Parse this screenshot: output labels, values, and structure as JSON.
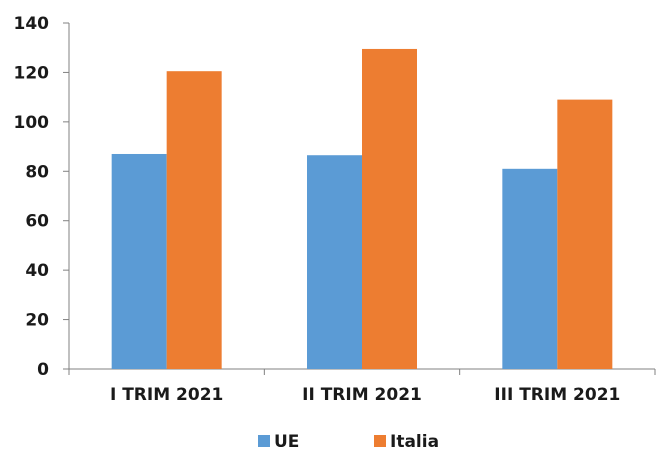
{
  "chart_data": {
    "type": "bar",
    "categories": [
      "I TRIM 2021",
      "II TRIM 2021",
      "III TRIM 2021"
    ],
    "series": [
      {
        "name": "UE",
        "values": [
          87,
          86.5,
          81
        ],
        "color": "#5B9BD5"
      },
      {
        "name": "Italia",
        "values": [
          120.5,
          129.5,
          109
        ],
        "color": "#ED7D31"
      }
    ],
    "ylim": [
      0,
      140
    ],
    "yticks": [
      0,
      20,
      40,
      60,
      80,
      100,
      120,
      140
    ],
    "grid": false,
    "legend_position": "bottom"
  }
}
